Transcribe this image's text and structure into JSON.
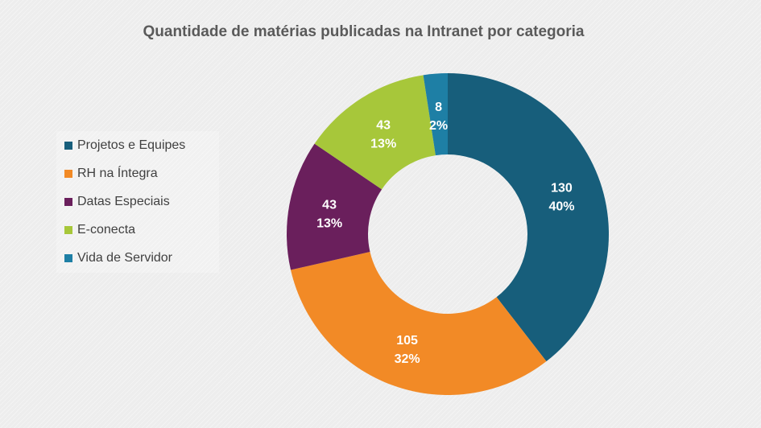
{
  "chart_data": {
    "type": "pie",
    "title": "Quantidade de matérias publicadas na Intranet por categoria",
    "categories": [
      "Projetos e Equipes",
      "RH na Íntegra",
      "Datas Especiais",
      "E-conecta",
      "Vida de Servidor"
    ],
    "values": [
      130,
      105,
      43,
      43,
      8
    ],
    "percent_labels": [
      "40%",
      "32%",
      "13%",
      "13%",
      "2%"
    ],
    "colors": [
      "#175e7b",
      "#f28a26",
      "#6a1f5c",
      "#a7c73a",
      "#1e7fa5"
    ],
    "donut": true,
    "legend_position": "left"
  }
}
